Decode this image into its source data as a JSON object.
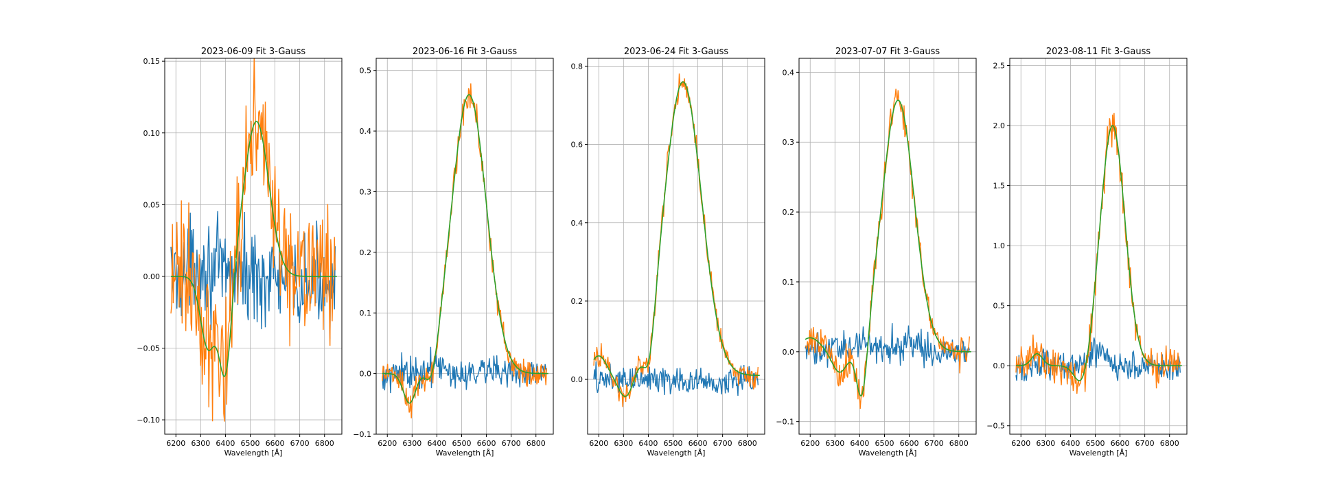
{
  "colors": {
    "residual": "#1f77b4",
    "observed": "#ff7f0e",
    "fit": "#2ca02c",
    "grid": "#b0b0b0"
  },
  "chart_data": [
    {
      "type": "line",
      "title": "2023-06-09 Fit 3-Gauss",
      "xlabel": "Wavelength [Å]",
      "ylabel": "",
      "xlim": [
        6155,
        6870
      ],
      "ylim": [
        -0.11,
        0.152
      ],
      "xticks": [
        "6200",
        "6300",
        "6400",
        "6500",
        "6600",
        "6700",
        "6800"
      ],
      "yticks": [
        -0.1,
        -0.05,
        0.0,
        0.05,
        0.1,
        0.15
      ],
      "ytick_labels": [
        "−0.10",
        "−0.05",
        "0.00",
        "0.05",
        "0.10",
        "0.15"
      ],
      "grid": true,
      "fit": {
        "offset": 0.0,
        "gaussians": [
          [
            -0.05,
            6330,
            30
          ],
          [
            -0.07,
            6400,
            25
          ],
          [
            0.108,
            6525,
            50
          ]
        ]
      },
      "observed_noise": 0.035,
      "residual_noise": 0.025,
      "series": [
        {
          "x": [
            6180,
            6200,
            6220,
            6240,
            6260,
            6280,
            6300,
            6320,
            6340,
            6360,
            6380,
            6400,
            6420,
            6440,
            6460,
            6480,
            6500,
            6520,
            6540,
            6560,
            6580,
            6600,
            6620,
            6640,
            6660,
            6680,
            6700,
            6720,
            6740,
            6760,
            6780,
            6800,
            6820,
            6840
          ],
          "y": [
            0.06,
            0.07,
            0.05,
            0.0,
            -0.03,
            -0.04,
            -0.05,
            -0.06,
            -0.04,
            -0.02,
            -0.05,
            -0.07,
            -0.02,
            0.02,
            0.06,
            0.08,
            0.1,
            0.1,
            0.11,
            0.11,
            0.09,
            0.07,
            0.05,
            0.03,
            0.02,
            0.0,
            -0.03,
            0.0,
            0.03,
            0.04,
            0.05,
            0.06,
            0.04,
            0.02
          ]
        },
        {
          "x": [
            6200,
            6300,
            6400,
            6500,
            6600,
            6700,
            6800,
            6840
          ],
          "y": [
            0.0,
            0.01,
            0.0,
            0.0,
            0.0,
            -0.01,
            0.0,
            0.0
          ]
        },
        {
          "x": [
            6180,
            6280,
            6330,
            6400,
            6525,
            6700,
            6850
          ],
          "y": [
            0.0,
            -0.005,
            -0.05,
            -0.066,
            0.108,
            0.0,
            0.0
          ]
        }
      ]
    },
    {
      "type": "line",
      "title": "2023-06-16 Fit 3-Gauss",
      "xlabel": "Wavelength [Å]",
      "ylabel": "",
      "xlim": [
        6155,
        6870
      ],
      "ylim": [
        -0.1,
        0.52
      ],
      "xticks": [
        "6200",
        "6300",
        "6400",
        "6500",
        "6600",
        "6700",
        "6800"
      ],
      "yticks": [
        -0.1,
        0.0,
        0.1,
        0.2,
        0.3,
        0.4,
        0.5
      ],
      "ytick_labels": [
        "−0.1",
        "0.0",
        "0.1",
        "0.2",
        "0.3",
        "0.4",
        "0.5"
      ],
      "grid": true,
      "fit": {
        "offset": 0.0,
        "gaussians": [
          [
            -0.05,
            6290,
            25
          ],
          [
            -0.045,
            6380,
            25
          ],
          [
            0.46,
            6530,
            70
          ]
        ]
      },
      "observed_noise": 0.018,
      "residual_noise": 0.02,
      "series": [
        {
          "x": [
            6180,
            6250,
            6290,
            6350,
            6390,
            6420,
            6460,
            6500,
            6530,
            6560,
            6600,
            6650,
            6700,
            6760,
            6820,
            6840
          ],
          "y": [
            0.06,
            0.0,
            -0.06,
            -0.02,
            -0.04,
            0.05,
            0.3,
            0.44,
            0.47,
            0.44,
            0.28,
            0.1,
            0.03,
            0.01,
            -0.01,
            0.0
          ]
        },
        {
          "x": [
            6200,
            6300,
            6400,
            6500,
            6600,
            6700,
            6800,
            6840
          ],
          "y": [
            0.0,
            0.0,
            0.01,
            0.0,
            0.01,
            0.0,
            0.0,
            0.0
          ]
        },
        {
          "x": [
            6180,
            6290,
            6380,
            6530,
            6700,
            6850
          ],
          "y": [
            0.0,
            -0.05,
            -0.045,
            0.46,
            0.03,
            0.0
          ]
        }
      ]
    },
    {
      "type": "line",
      "title": "2023-06-24 Fit 3-Gauss",
      "xlabel": "Wavelength [Å]",
      "ylabel": "",
      "xlim": [
        6155,
        6870
      ],
      "ylim": [
        -0.14,
        0.82
      ],
      "xticks": [
        "6200",
        "6300",
        "6400",
        "6500",
        "6600",
        "6700",
        "6800"
      ],
      "yticks": [
        0.0,
        0.2,
        0.4,
        0.6,
        0.8
      ],
      "ytick_labels": [
        "0.0",
        "0.2",
        "0.4",
        "0.6",
        "0.8"
      ],
      "grid": true,
      "fit": {
        "offset": 0.01,
        "gaussians": [
          [
            0.05,
            6200,
            30
          ],
          [
            -0.06,
            6310,
            30
          ],
          [
            -0.1,
            6405,
            22
          ],
          [
            0.75,
            6540,
            75
          ]
        ]
      },
      "observed_noise": 0.025,
      "residual_noise": 0.028,
      "series": [
        {
          "x": [
            6180,
            6220,
            6280,
            6330,
            6380,
            6405,
            6440,
            6480,
            6520,
            6540,
            6580,
            6620,
            6680,
            6740,
            6800,
            6840
          ],
          "y": [
            0.06,
            0.04,
            -0.05,
            0.0,
            -0.05,
            -0.09,
            0.2,
            0.6,
            0.75,
            0.76,
            0.65,
            0.4,
            0.18,
            0.08,
            0.05,
            0.03
          ]
        },
        {
          "x": [
            6200,
            6300,
            6400,
            6500,
            6600,
            6700,
            6800,
            6840
          ],
          "y": [
            0.0,
            0.0,
            0.0,
            0.0,
            -0.01,
            -0.01,
            0.0,
            0.0
          ]
        },
        {
          "x": [
            6180,
            6310,
            6405,
            6540,
            6700,
            6850
          ],
          "y": [
            0.05,
            -0.04,
            -0.09,
            0.76,
            0.1,
            0.01
          ]
        }
      ]
    },
    {
      "type": "line",
      "title": "2023-07-07 Fit 3-Gauss",
      "xlabel": "Wavelength [Å]",
      "ylabel": "",
      "xlim": [
        6155,
        6870
      ],
      "ylim": [
        -0.118,
        0.42
      ],
      "xticks": [
        "6200",
        "6300",
        "6400",
        "6500",
        "6600",
        "6700",
        "6800"
      ],
      "yticks": [
        -0.1,
        0.0,
        0.1,
        0.2,
        0.3,
        0.4
      ],
      "ytick_labels": [
        "−0.1",
        "0.0",
        "0.1",
        "0.2",
        "0.3",
        "0.4"
      ],
      "grid": true,
      "fit": {
        "offset": 0.0,
        "gaussians": [
          [
            0.02,
            6200,
            40
          ],
          [
            -0.03,
            6320,
            30
          ],
          [
            -0.09,
            6410,
            22
          ],
          [
            0.36,
            6555,
            65
          ]
        ]
      },
      "observed_noise": 0.018,
      "residual_noise": 0.018,
      "series": [
        {
          "x": [
            6180,
            6250,
            6320,
            6380,
            6410,
            6450,
            6500,
            6540,
            6560,
            6600,
            6650,
            6700,
            6760,
            6820,
            6840
          ],
          "y": [
            0.02,
            0.01,
            -0.02,
            -0.04,
            -0.08,
            0.05,
            0.25,
            0.37,
            0.38,
            0.3,
            0.18,
            0.09,
            0.04,
            0.02,
            0.0
          ]
        },
        {
          "x": [
            6200,
            6300,
            6400,
            6500,
            6600,
            6700,
            6800,
            6840
          ],
          "y": [
            0.0,
            0.0,
            0.01,
            0.01,
            0.01,
            0.0,
            0.0,
            0.0
          ]
        },
        {
          "x": [
            6180,
            6320,
            6410,
            6555,
            6700,
            6850
          ],
          "y": [
            0.02,
            -0.01,
            -0.075,
            0.36,
            0.08,
            0.0
          ]
        }
      ]
    },
    {
      "type": "line",
      "title": "2023-08-11 Fit 3-Gauss",
      "xlabel": "Wavelength [Å]",
      "ylabel": "",
      "xlim": [
        6155,
        6870
      ],
      "ylim": [
        -0.57,
        2.56
      ],
      "xticks": [
        "6200",
        "6300",
        "6400",
        "6500",
        "6600",
        "6700",
        "6800"
      ],
      "yticks": [
        -0.5,
        0.0,
        0.5,
        1.0,
        1.5,
        2.0,
        2.5
      ],
      "ytick_labels": [
        "−0.5",
        "0.0",
        "0.5",
        "1.0",
        "1.5",
        "2.0",
        "2.5"
      ],
      "grid": true,
      "fit": {
        "offset": 0.0,
        "gaussians": [
          [
            0.1,
            6265,
            22
          ],
          [
            -0.2,
            6450,
            30
          ],
          [
            2.0,
            6570,
            50
          ]
        ]
      },
      "observed_noise": 0.12,
      "residual_noise": 0.1,
      "series": [
        {
          "x": [
            6180,
            6260,
            6330,
            6400,
            6450,
            6500,
            6540,
            6570,
            6600,
            6650,
            6700,
            6760,
            6820,
            6840
          ],
          "y": [
            -0.1,
            0.15,
            -0.1,
            -0.05,
            -0.2,
            0.3,
            1.6,
            2.3,
            1.6,
            0.9,
            0.3,
            0.1,
            -0.3,
            0.0
          ]
        },
        {
          "x": [
            6200,
            6300,
            6400,
            6500,
            6600,
            6700,
            6800,
            6840
          ],
          "y": [
            0.0,
            0.0,
            0.0,
            0.1,
            0.0,
            0.0,
            0.0,
            0.0
          ]
        },
        {
          "x": [
            6180,
            6265,
            6450,
            6570,
            6700,
            6850
          ],
          "y": [
            0.0,
            0.1,
            -0.2,
            2.0,
            0.1,
            0.0
          ]
        }
      ]
    }
  ]
}
